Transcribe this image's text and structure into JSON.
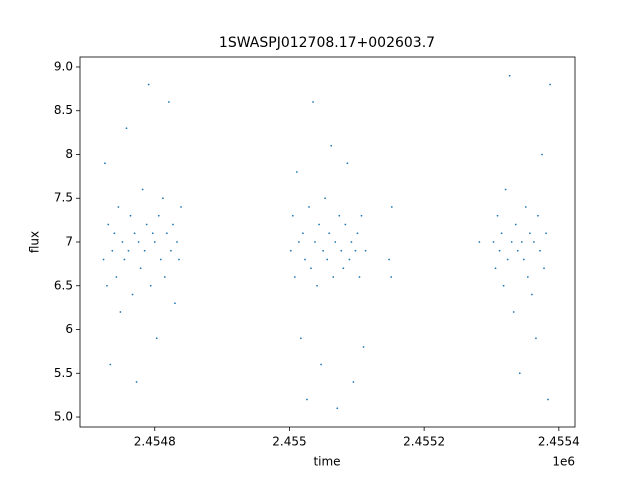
{
  "chart_data": {
    "type": "scatter",
    "title": "1SWASPJ012708.17+002603.7",
    "x_label": "time",
    "y_label": "flux",
    "x_offset_label": "1e6",
    "color": "#1f77b4",
    "grid": false,
    "xlim": [
      2.454689,
      2.455424
    ],
    "xticks": [
      2.4548,
      2.455,
      2.4552,
      2.4554
    ],
    "ylim": [
      4.886,
      9.114
    ],
    "yticks": [
      {
        "value": 5,
        "label": "5.0"
      },
      5.5,
      6.0,
      6.5,
      7.0,
      7.5,
      8.0,
      8.5,
      {
        "value": 9,
        "label": "9.0"
      }
    ],
    "x": [
      2.454724,
      2.454726,
      2.454729,
      2.454731,
      2.454734,
      2.454737,
      2.45474,
      2.454743,
      2.454746,
      2.454749,
      2.454752,
      2.454755,
      2.454758,
      2.454761,
      2.454764,
      2.454767,
      2.45477,
      2.454773,
      2.454776,
      2.454779,
      2.454782,
      2.454785,
      2.454788,
      2.454791,
      2.454794,
      2.454797,
      2.4548,
      2.454803,
      2.454806,
      2.454809,
      2.454812,
      2.454815,
      2.454818,
      2.454821,
      2.454824,
      2.454827,
      2.45483,
      2.454833,
      2.454836,
      2.454839,
      2.455002,
      2.455005,
      2.455008,
      2.455011,
      2.455014,
      2.455017,
      2.45502,
      2.455023,
      2.455026,
      2.455029,
      2.455032,
      2.455035,
      2.455038,
      2.455041,
      2.455044,
      2.455047,
      2.45505,
      2.455053,
      2.455056,
      2.455059,
      2.455062,
      2.455065,
      2.455068,
      2.455071,
      2.455074,
      2.455077,
      2.45508,
      2.455083,
      2.455086,
      2.455089,
      2.455092,
      2.455095,
      2.455098,
      2.455101,
      2.455104,
      2.455107,
      2.45511,
      2.455113,
      2.455148,
      2.455152,
      2.455151,
      2.455303,
      2.455306,
      2.455309,
      2.455312,
      2.455315,
      2.455318,
      2.455321,
      2.455324,
      2.455327,
      2.45533,
      2.455333,
      2.455336,
      2.455339,
      2.455342,
      2.455345,
      2.455348,
      2.455351,
      2.455354,
      2.455357,
      2.45536,
      2.455363,
      2.455366,
      2.455369,
      2.455372,
      2.455375,
      2.455378,
      2.455381,
      2.455384,
      2.455387,
      2.455282
    ],
    "y": [
      6.8,
      7.9,
      6.5,
      7.2,
      5.6,
      6.9,
      7.1,
      6.6,
      7.4,
      6.2,
      7.0,
      6.8,
      8.3,
      6.9,
      7.3,
      6.4,
      7.1,
      5.4,
      7.0,
      6.7,
      7.6,
      6.9,
      7.2,
      8.8,
      6.5,
      7.1,
      7.0,
      5.9,
      7.3,
      6.8,
      7.5,
      6.6,
      7.1,
      8.6,
      6.9,
      7.2,
      6.3,
      7.0,
      6.8,
      7.4,
      6.9,
      7.3,
      6.6,
      7.8,
      7.0,
      5.9,
      7.1,
      6.8,
      5.2,
      7.4,
      6.7,
      8.6,
      7.0,
      6.5,
      7.2,
      5.6,
      6.9,
      7.5,
      6.8,
      7.1,
      8.1,
      6.6,
      7.0,
      5.1,
      7.3,
      6.9,
      6.7,
      7.2,
      7.9,
      6.8,
      7.0,
      5.4,
      6.9,
      7.1,
      6.6,
      7.3,
      5.8,
      6.9,
      6.8,
      7.4,
      6.6,
      7.0,
      6.7,
      7.3,
      6.9,
      7.1,
      6.5,
      7.6,
      6.8,
      8.9,
      7.0,
      6.2,
      7.2,
      6.9,
      5.5,
      7.0,
      6.8,
      7.4,
      6.6,
      7.1,
      6.4,
      7.0,
      5.9,
      7.3,
      6.9,
      8.0,
      6.7,
      7.1,
      5.2,
      8.8,
      7.0
    ]
  }
}
